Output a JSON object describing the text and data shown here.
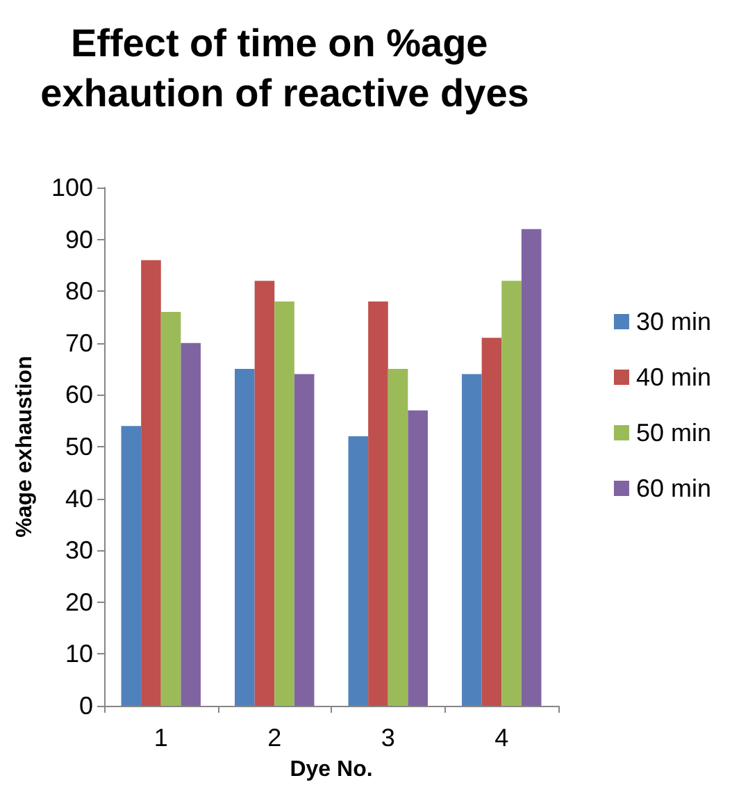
{
  "chart_data": {
    "type": "bar",
    "title": "Effect of time on %age exhaution of reactive dyes",
    "xlabel": "Dye No.",
    "ylabel": "%age exhaustion",
    "categories": [
      "1",
      "2",
      "3",
      "4"
    ],
    "series": [
      {
        "name": "30 min",
        "color": "#4f81bd",
        "values": [
          54,
          65,
          52,
          64
        ]
      },
      {
        "name": "40 min",
        "color": "#c0504d",
        "values": [
          86,
          82,
          78,
          71
        ]
      },
      {
        "name": "50 min",
        "color": "#9bbb59",
        "values": [
          76,
          78,
          65,
          82
        ]
      },
      {
        "name": "60 min",
        "color": "#8064a2",
        "values": [
          70,
          64,
          57,
          92
        ]
      }
    ],
    "ylim": [
      0,
      100
    ],
    "yticks": [
      0,
      10,
      20,
      30,
      40,
      50,
      60,
      70,
      80,
      90,
      100
    ],
    "grid": false,
    "legend": "right"
  }
}
